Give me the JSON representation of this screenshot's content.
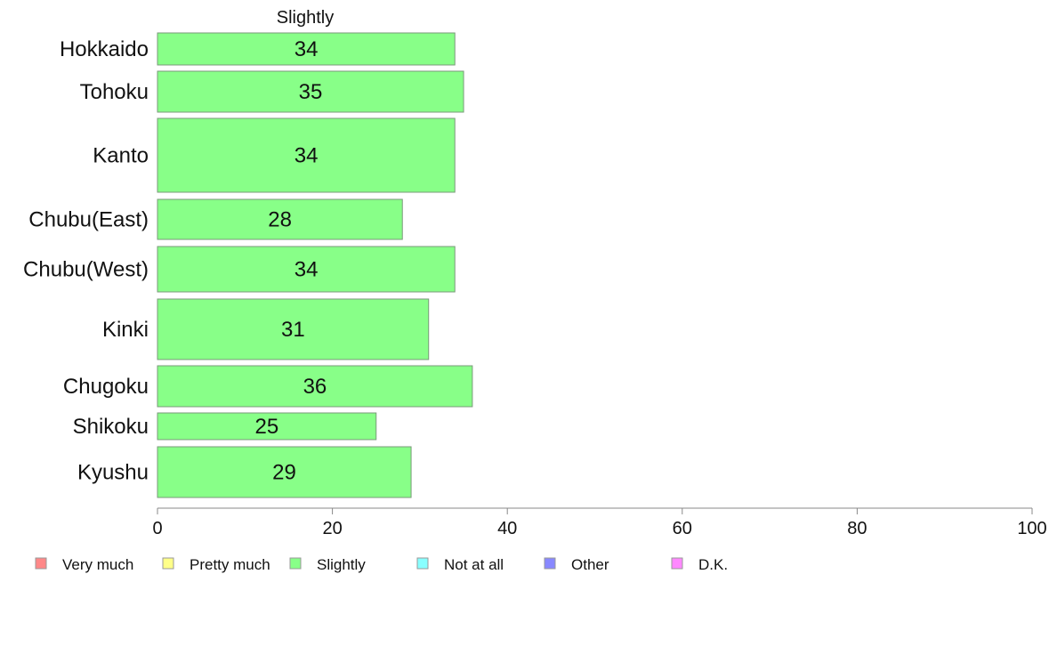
{
  "chart_data": {
    "type": "bar",
    "orientation": "horizontal",
    "title": "Slightly",
    "categories": [
      "Hokkaido",
      "Tohoku",
      "Kanto",
      "Chubu(East)",
      "Chubu(West)",
      "Kinki",
      "Chugoku",
      "Shikoku",
      "Kyushu"
    ],
    "series": [
      {
        "name": "Slightly",
        "values": [
          34,
          35,
          34,
          28,
          34,
          31,
          36,
          25,
          29
        ]
      }
    ],
    "bar_labels": [
      "34",
      "35",
      "34",
      "28",
      "34",
      "31",
      "36",
      "25",
      "29"
    ],
    "xlim": [
      0,
      100
    ],
    "xticks": [
      "0",
      "20",
      "40",
      "60",
      "80",
      "100"
    ],
    "grid": false,
    "legend": {
      "placement": "bottom",
      "entries": [
        {
          "label": "Very much",
          "color": "#ff8888"
        },
        {
          "label": "Pretty much",
          "color": "#ffff88"
        },
        {
          "label": "Slightly",
          "color": "#88ff88"
        },
        {
          "label": "Not at all",
          "color": "#88ffff"
        },
        {
          "label": "Other",
          "color": "#8888ff"
        },
        {
          "label": "D.K.",
          "color": "#ff88ff"
        }
      ]
    },
    "bar_color": "#88ff88",
    "bar_stroke": "#7a9a7a"
  }
}
